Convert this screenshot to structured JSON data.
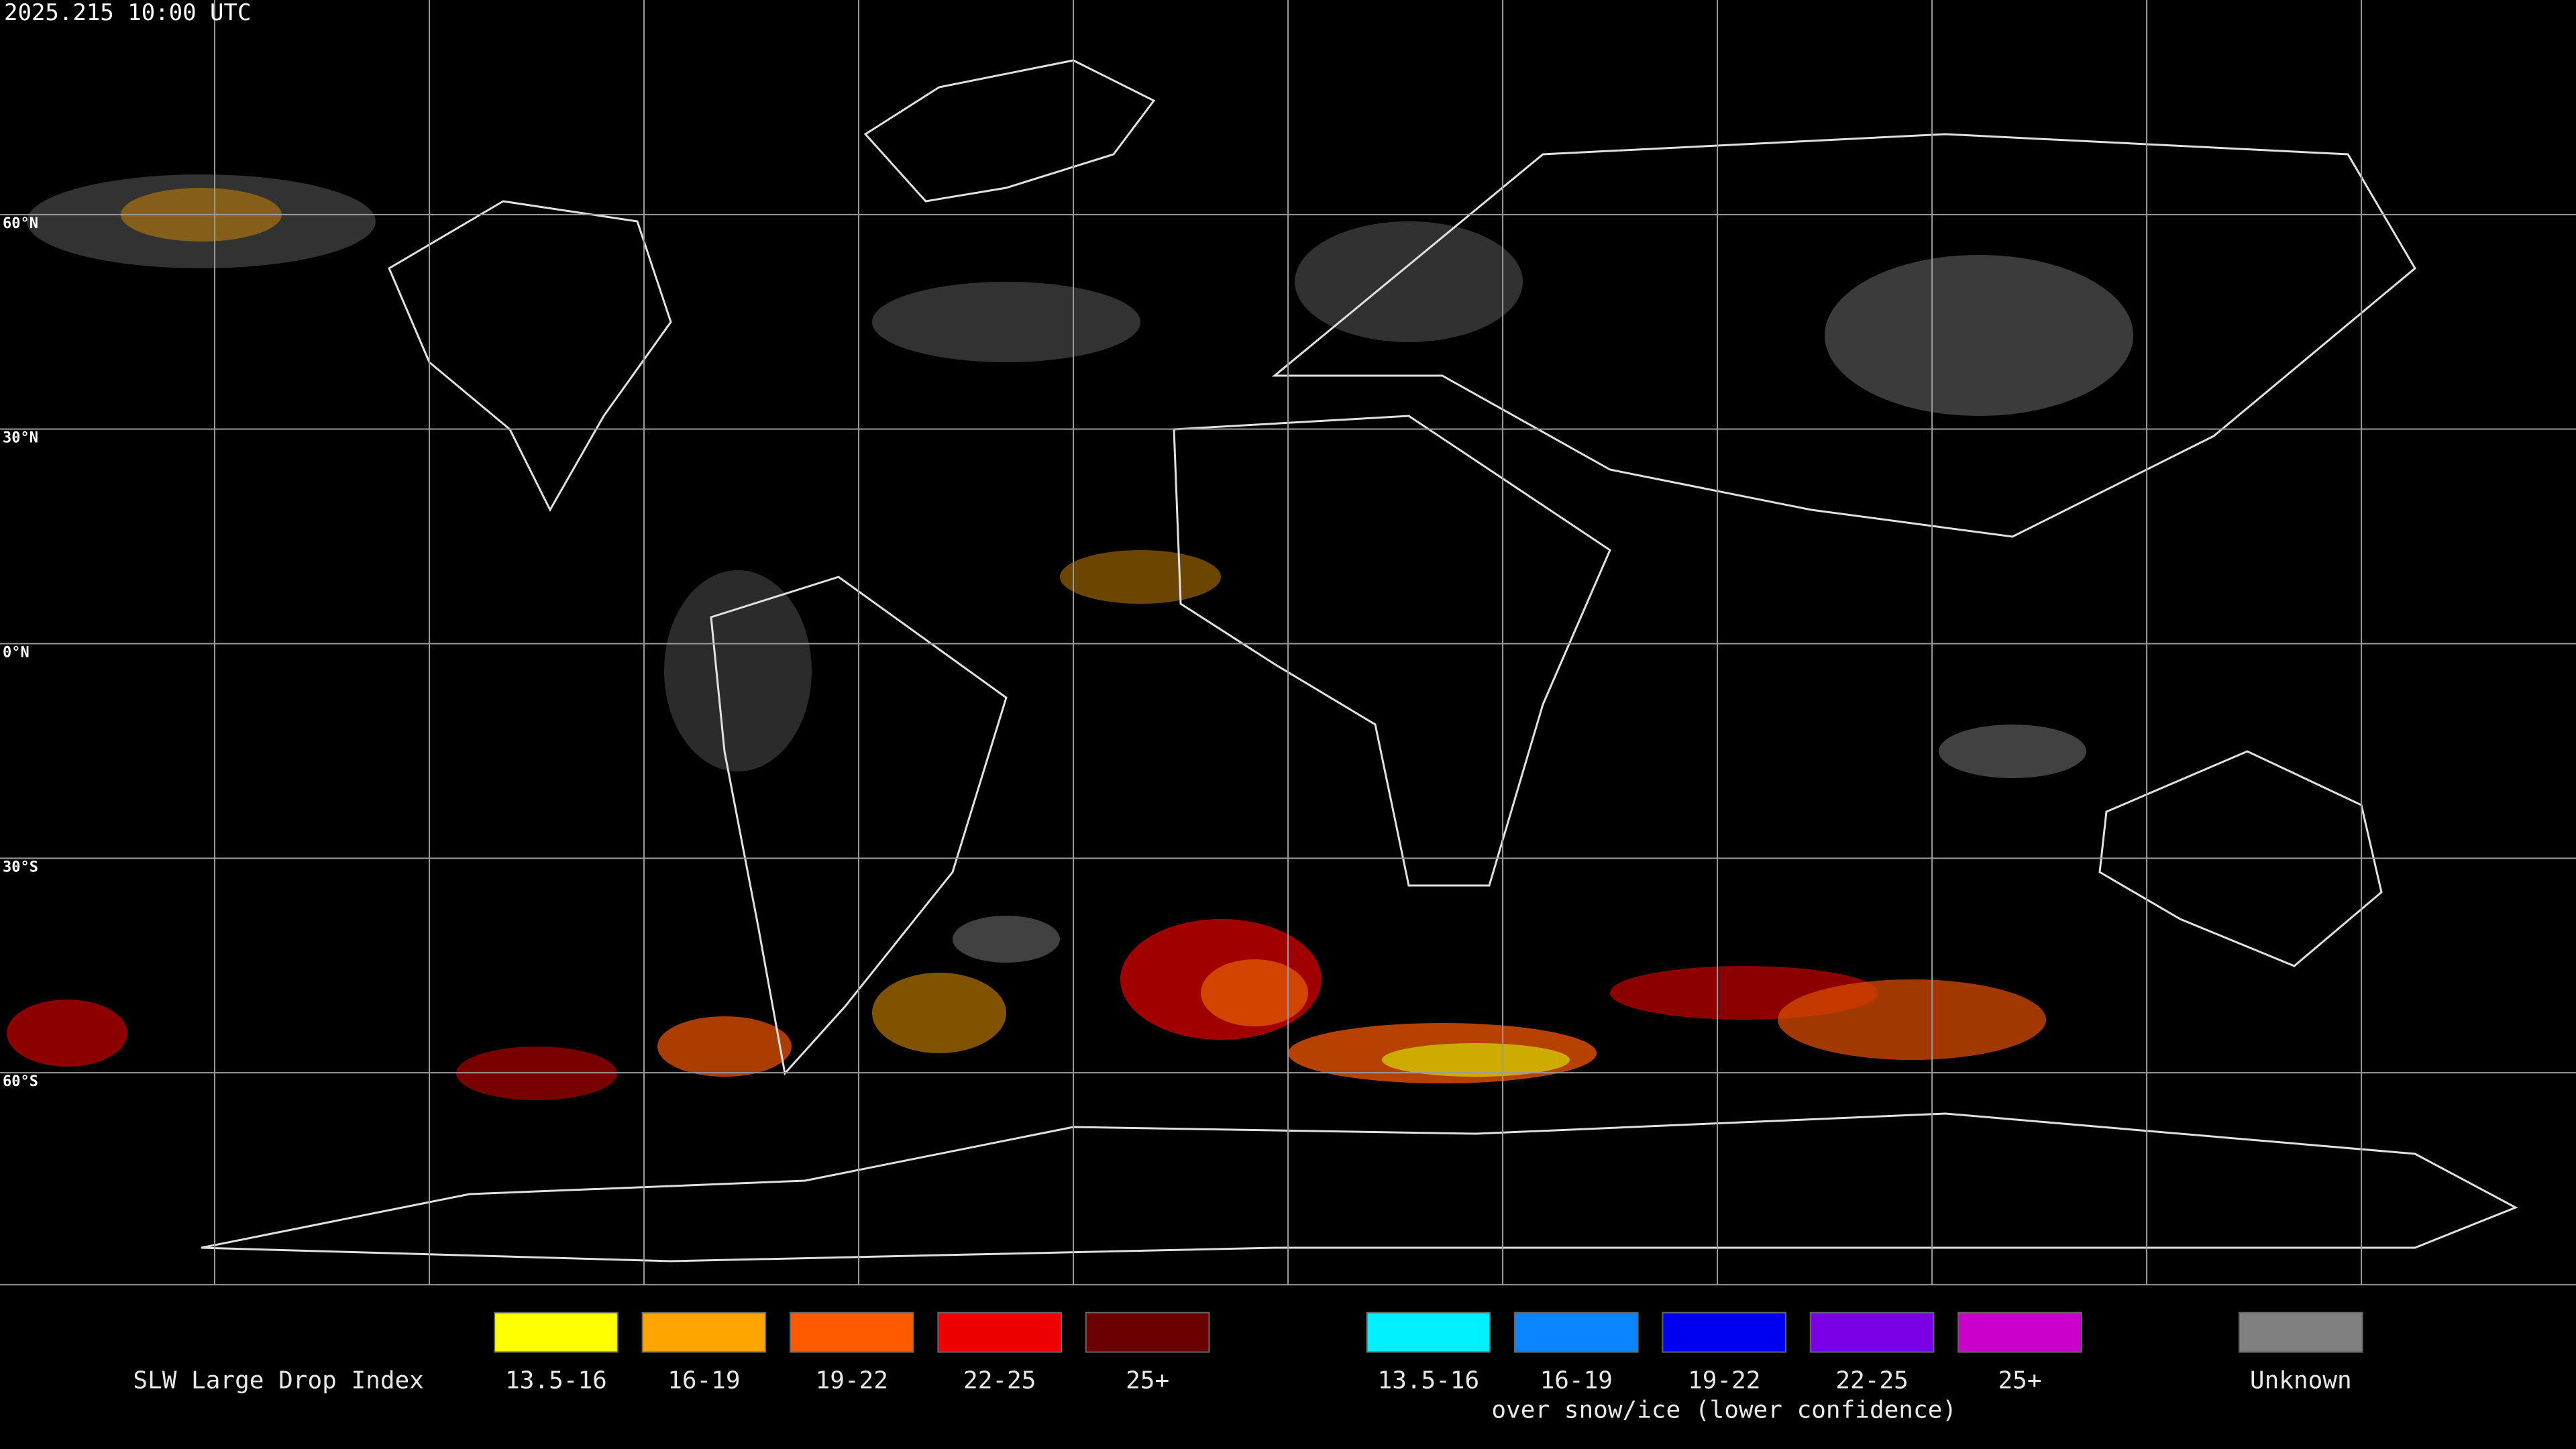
{
  "header": {
    "timestamp": "2025.215 10:00 UTC"
  },
  "map": {
    "latitude_labels": [
      "60°N",
      "30°N",
      "0°N",
      "30°S",
      "60°S"
    ]
  },
  "legend": {
    "title": "SLW Large Drop Index",
    "groups": [
      {
        "items": [
          {
            "label": "13.5-16",
            "color": "#ffff00"
          },
          {
            "label": "16-19",
            "color": "#ffa500"
          },
          {
            "label": "19-22",
            "color": "#ff5a00"
          },
          {
            "label": "22-25",
            "color": "#ee0000"
          },
          {
            "label": "25+",
            "color": "#6b0000"
          }
        ]
      },
      {
        "items": [
          {
            "label": "13.5-16",
            "color": "#00f0ff"
          },
          {
            "label": "16-19",
            "color": "#0a84ff"
          },
          {
            "label": "19-22",
            "color": "#0000f0"
          },
          {
            "label": "22-25",
            "color": "#7a00e6"
          },
          {
            "label": "25+",
            "color": "#cc00cc"
          }
        ],
        "caption": "over snow/ice (lower confidence)"
      },
      {
        "items": [
          {
            "label": "Unknown",
            "color": "#808080"
          }
        ]
      }
    ]
  }
}
